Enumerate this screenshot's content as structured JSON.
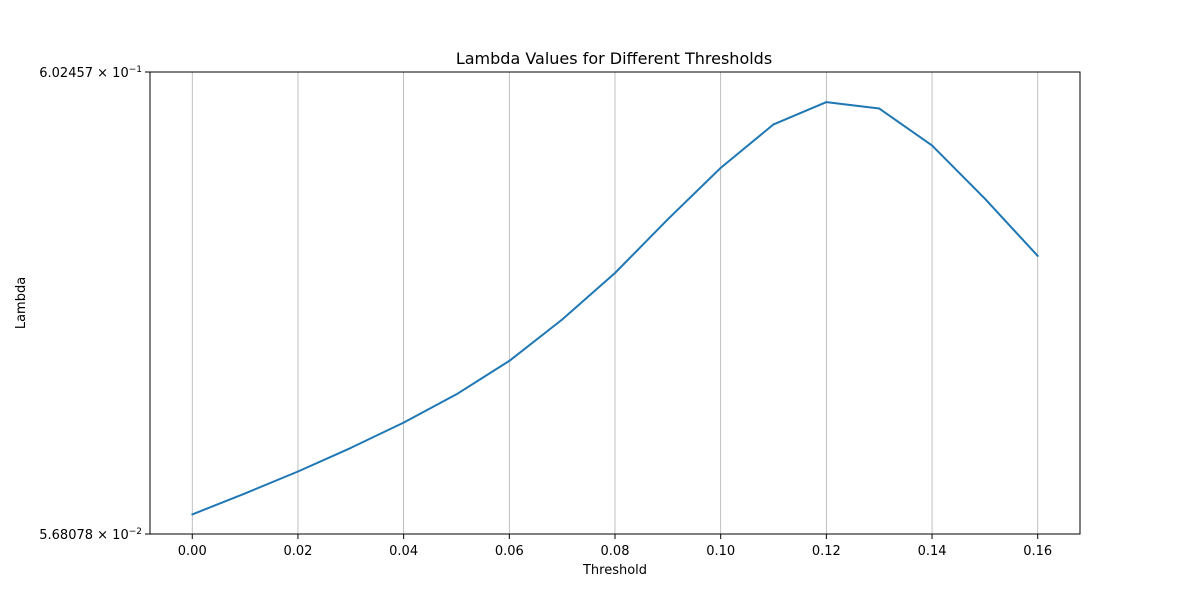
{
  "chart_data": {
    "type": "line",
    "title": "Lambda Values for Different Thresholds",
    "xlabel": "Threshold",
    "ylabel": "Lambda",
    "x_ticks": [
      "0.00",
      "0.02",
      "0.04",
      "0.06",
      "0.08",
      "0.10",
      "0.12",
      "0.14",
      "0.16"
    ],
    "y_ticks": [
      {
        "mantissa": "5.68078",
        "exponent": "−2"
      },
      {
        "mantissa": "6.02457",
        "exponent": "−1"
      }
    ],
    "xlim": [
      -0.008,
      0.168
    ],
    "ylim": [
      0.0568078,
      0.602457
    ],
    "yscale": "log",
    "grid": "x-major",
    "series": [
      {
        "color": "#1f77b4",
        "x": [
          0.0,
          0.01,
          0.02,
          0.03,
          0.04,
          0.05,
          0.06,
          0.07,
          0.08,
          0.09,
          0.1,
          0.11,
          0.12,
          0.13,
          0.14,
          0.15,
          0.16
        ],
        "y": [
          0.0628,
          0.0699,
          0.0782,
          0.0882,
          0.1004,
          0.116,
          0.1376,
          0.17,
          0.2156,
          0.2838,
          0.369,
          0.4608,
          0.5165,
          0.4999,
          0.4141,
          0.3152,
          0.2354
        ]
      }
    ]
  }
}
